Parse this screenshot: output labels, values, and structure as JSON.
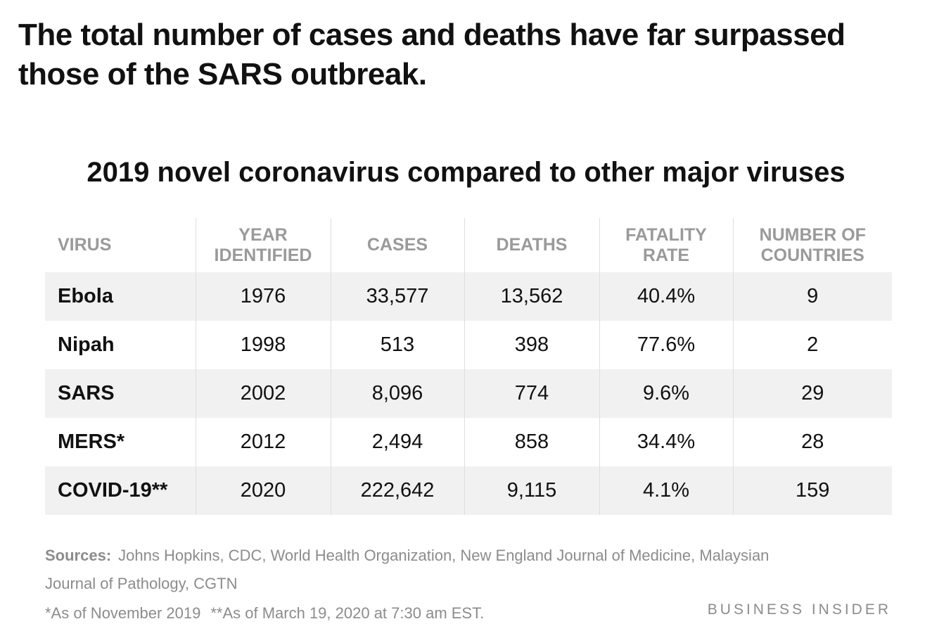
{
  "headline": "The total number of cases and deaths have far surpassed those of the SARS outbreak.",
  "chart_data": {
    "type": "table",
    "title": "2019 novel coronavirus compared to other major viruses",
    "columns": [
      "VIRUS",
      "YEAR IDENTIFIED",
      "CASES",
      "DEATHS",
      "FATALITY RATE",
      "NUMBER OF COUNTRIES"
    ],
    "rows": [
      [
        "Ebola",
        "1976",
        "33,577",
        "13,562",
        "40.4%",
        "9"
      ],
      [
        "Nipah",
        "1998",
        "513",
        "398",
        "77.6%",
        "2"
      ],
      [
        "SARS",
        "2002",
        "8,096",
        "774",
        "9.6%",
        "29"
      ],
      [
        "MERS*",
        "2012",
        "2,494",
        "858",
        "34.4%",
        "28"
      ],
      [
        "COVID-19**",
        "2020",
        "222,642",
        "9,115",
        "4.1%",
        "159"
      ]
    ]
  },
  "sources": {
    "label": "Sources:",
    "text": "Johns Hopkins, CDC, World Health Organization, New England Journal of Medicine, Malaysian Journal of Pathology, CGTN"
  },
  "footnotes": {
    "mers": "*As of November 2019",
    "covid": "**As of March 19, 2020 at 7:30 am EST."
  },
  "brand": "BUSINESS INSIDER",
  "colors": {
    "text": "#111111",
    "header_text": "#9a9a9a",
    "muted": "#8c8c8c",
    "row_shade": "#f1f1f1",
    "divider": "#dedede"
  }
}
